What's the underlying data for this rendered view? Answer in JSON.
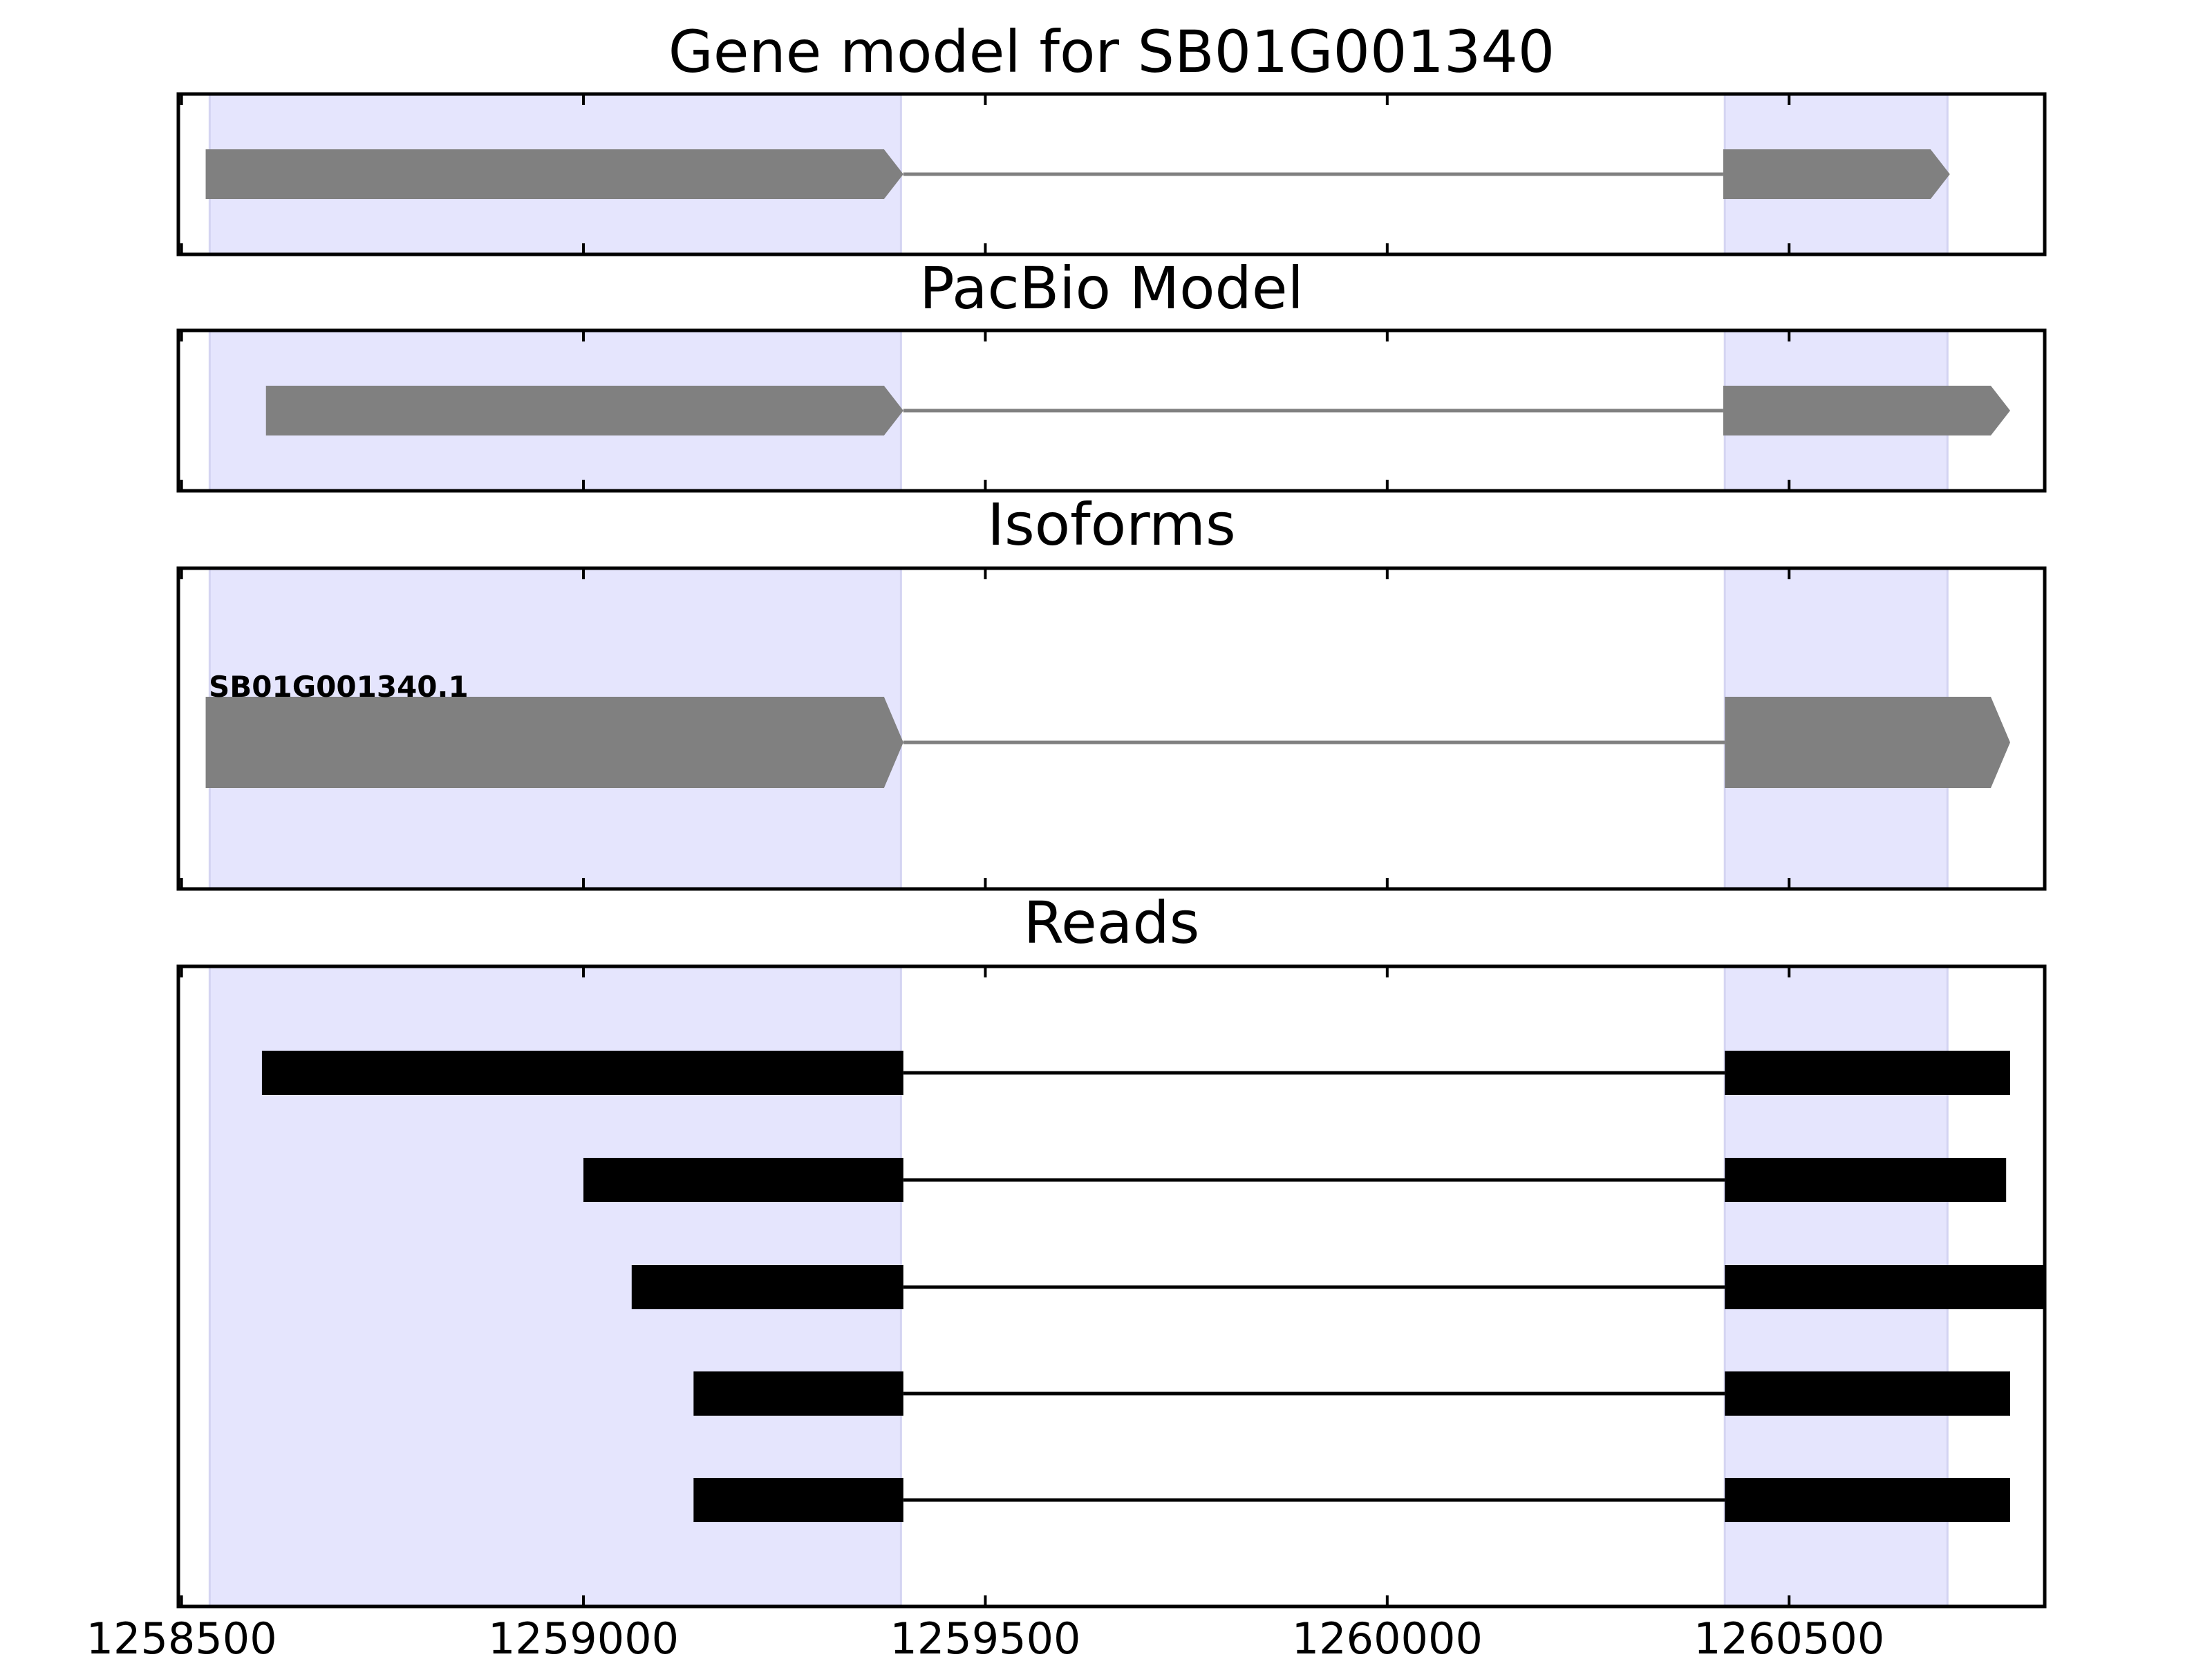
{
  "chart_data": {
    "type": "gene-track",
    "x_axis": {
      "ticks": [
        1258500,
        1259000,
        1259500,
        1260000,
        1260500
      ],
      "tick_labels": [
        "1258500",
        "1259000",
        "1259500",
        "1260000",
        "1260500"
      ],
      "xlim": [
        1258496,
        1260818
      ]
    },
    "highlight_regions": [
      {
        "start": 1258535,
        "end": 1259395
      },
      {
        "start": 1260420,
        "end": 1260697
      }
    ],
    "colors": {
      "highlight": "#e5e5fd",
      "highlight_edge": "#d4d4f2",
      "model": "#808080",
      "read": "#000000",
      "frame": "#000000"
    },
    "panels": [
      {
        "id": "gene-model",
        "title": "Gene model for SB01G001340",
        "features": [
          {
            "exons": [
              {
                "start": 1258530,
                "end": 1259398
              },
              {
                "start": 1260418,
                "end": 1260700
              }
            ],
            "strand": "+"
          }
        ]
      },
      {
        "id": "pacbio-model",
        "title": "PacBio Model",
        "features": [
          {
            "exons": [
              {
                "start": 1258605,
                "end": 1259398
              },
              {
                "start": 1260418,
                "end": 1260775
              }
            ],
            "strand": "+"
          }
        ]
      },
      {
        "id": "isoforms",
        "title": "Isoforms",
        "features": [
          {
            "label": "SB01G001340.1",
            "exons": [
              {
                "start": 1258530,
                "end": 1259398
              },
              {
                "start": 1260420,
                "end": 1260775
              }
            ],
            "strand": "+"
          }
        ]
      },
      {
        "id": "reads",
        "title": "Reads",
        "features": [
          {
            "exons": [
              {
                "start": 1258600,
                "end": 1259398
              },
              {
                "start": 1260420,
                "end": 1260775
              }
            ]
          },
          {
            "exons": [
              {
                "start": 1259000,
                "end": 1259398
              },
              {
                "start": 1260420,
                "end": 1260770
              }
            ]
          },
          {
            "exons": [
              {
                "start": 1259060,
                "end": 1259398
              },
              {
                "start": 1260420,
                "end": 1260818
              }
            ]
          },
          {
            "exons": [
              {
                "start": 1259137,
                "end": 1259398
              },
              {
                "start": 1260420,
                "end": 1260775
              }
            ]
          },
          {
            "exons": [
              {
                "start": 1259137,
                "end": 1259398
              },
              {
                "start": 1260420,
                "end": 1260775
              }
            ]
          }
        ]
      }
    ]
  }
}
